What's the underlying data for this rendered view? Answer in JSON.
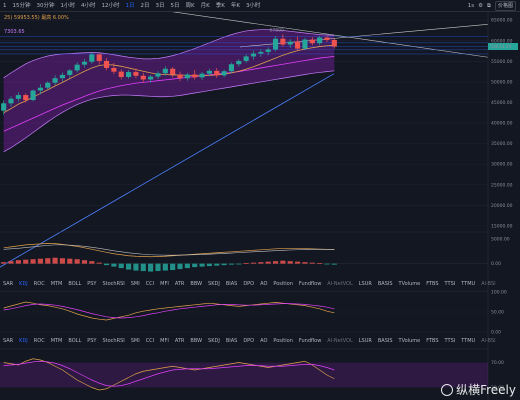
{
  "toolbar": {
    "timeframes": [
      "1",
      "15分钟",
      "30分钟",
      "1小时",
      "4小时",
      "12小时",
      "1日",
      "2日",
      "3日",
      "5日",
      "周K",
      "月K",
      "季K",
      "年K",
      "3小时"
    ],
    "active_timeframe": "1日",
    "interval_label": "1s",
    "mode_button": "价格图"
  },
  "legend": {
    "ma_line": "25) 59953.55) 最高 6.00%",
    "bb_line": "7303.65"
  },
  "price_axis": {
    "ticks": [
      "65000.00",
      "60000.00",
      "55000.00",
      "50000.00",
      "45000.00",
      "40000.00",
      "35000.00",
      "30000.00",
      "25000.00",
      "20000.00",
      "15000.00"
    ],
    "last_price": "58614.49",
    "last_price_color": "#26a69a",
    "high_label": "67800"
  },
  "macd_axis": {
    "ticks": [
      "5000.00",
      "0.00"
    ]
  },
  "indicators_row1": [
    "SAR",
    "KDJ",
    "ROC",
    "MTM",
    "BOLL",
    "PSY",
    "StochRSI",
    "SMI",
    "CCI",
    "MFI",
    "ATR",
    "BBW",
    "SKDJ",
    "BIAS",
    "DPO",
    "AO",
    "Position",
    "Fundflow",
    "Al-NetVOL",
    "LSUR",
    "BASIS",
    "TVolume",
    "FTBS",
    "TTSI",
    "TTMU",
    "Al-BSI"
  ],
  "indicators_row1_active": "KDJ",
  "indicators_row2": [
    "SAR",
    "KDJ",
    "ROC",
    "MTM",
    "BOLL",
    "PSY",
    "StochRSI",
    "SMI",
    "CCI",
    "MFI",
    "ATR",
    "BBW",
    "SKDJ",
    "BIAS",
    "DPO",
    "AO",
    "Position",
    "Fundflow",
    "Al-NetVOL",
    "LSUR",
    "BASIS",
    "TVolume",
    "FTBS",
    "TTSI",
    "TTMU",
    "Al-BSI"
  ],
  "indicators_row2_active": "KDJ",
  "osc1_axis": {
    "ticks": [
      "100.00",
      "50.00",
      "0.00"
    ]
  },
  "osc2_axis": {
    "ticks": [
      "70.00",
      "30.00"
    ]
  },
  "watermark": "纵横Freely",
  "colors": {
    "up": "#26a69a",
    "down": "#ef5350",
    "accent": "#2962ff",
    "band": "#7b1fa2"
  },
  "chart_data": {
    "type": "candlestick",
    "ohlc": [
      [
        43000,
        45500,
        42000,
        44800
      ],
      [
        44800,
        46500,
        44000,
        45900
      ],
      [
        45900,
        47500,
        45200,
        46800
      ],
      [
        46800,
        47200,
        45000,
        45600
      ],
      [
        45600,
        48200,
        45300,
        47900
      ],
      [
        47900,
        49500,
        47000,
        48600
      ],
      [
        48600,
        50200,
        48100,
        49800
      ],
      [
        49800,
        51600,
        49200,
        50900
      ],
      [
        50900,
        52300,
        50100,
        51700
      ],
      [
        51700,
        53100,
        51000,
        52800
      ],
      [
        52800,
        54800,
        52300,
        54200
      ],
      [
        54200,
        55600,
        53500,
        54900
      ],
      [
        54900,
        57200,
        54400,
        56700
      ],
      [
        56700,
        57000,
        54200,
        55100
      ],
      [
        55100,
        55800,
        52800,
        53400
      ],
      [
        53400,
        54600,
        51900,
        52500
      ],
      [
        52500,
        53100,
        50600,
        51200
      ],
      [
        51200,
        52900,
        50800,
        52400
      ],
      [
        52400,
        53300,
        50900,
        51500
      ],
      [
        51500,
        52200,
        49900,
        50600
      ],
      [
        50600,
        51700,
        49800,
        51300
      ],
      [
        51300,
        52600,
        50700,
        52100
      ],
      [
        52100,
        53800,
        51500,
        53200
      ],
      [
        53200,
        53600,
        51100,
        51800
      ],
      [
        51800,
        52500,
        50200,
        50900
      ],
      [
        50900,
        52200,
        50300,
        51800
      ],
      [
        51800,
        52900,
        50600,
        51100
      ],
      [
        51100,
        52400,
        50500,
        52000
      ],
      [
        52000,
        53200,
        51400,
        52700
      ],
      [
        52700,
        53400,
        51000,
        51600
      ],
      [
        51600,
        53000,
        51100,
        52600
      ],
      [
        52600,
        54700,
        52100,
        54300
      ],
      [
        54300,
        55500,
        53700,
        55100
      ],
      [
        55100,
        56700,
        54600,
        56200
      ],
      [
        56200,
        57600,
        55400,
        56900
      ],
      [
        56900,
        57900,
        56100,
        57300
      ],
      [
        57300,
        58400,
        56500,
        57900
      ],
      [
        57900,
        61200,
        57400,
        60500
      ],
      [
        60500,
        61600,
        58600,
        59100
      ],
      [
        59100,
        60400,
        58300,
        59800
      ],
      [
        59800,
        61000,
        57600,
        58100
      ],
      [
        58100,
        60700,
        57800,
        60300
      ],
      [
        60300,
        60900,
        58900,
        59400
      ],
      [
        59400,
        61200,
        58900,
        60800
      ],
      [
        60800,
        61100,
        59700,
        60200
      ],
      [
        60200,
        60600,
        58100,
        58600
      ]
    ],
    "price_range": [
      14000,
      67000
    ],
    "upper_band": [
      51000,
      52200,
      53300,
      54400,
      55200,
      55800,
      56300,
      56600,
      56800,
      56900,
      57000,
      57100,
      57150,
      57100,
      56900,
      56600,
      56300,
      56000,
      55800,
      55600,
      55600,
      55700,
      56000,
      56400,
      56900,
      57500,
      58100,
      58800,
      59500,
      60200,
      60900,
      61500,
      62000,
      62400,
      62600,
      62700,
      62700,
      62600,
      62500,
      62300,
      62100,
      61900,
      61700,
      61500,
      61400,
      61300
    ],
    "lower_band": [
      33000,
      34000,
      35200,
      36400,
      37700,
      39000,
      40300,
      41500,
      42600,
      43600,
      44500,
      45200,
      45800,
      46200,
      46500,
      46700,
      46800,
      46800,
      46700,
      46600,
      46500,
      46400,
      46400,
      46500,
      46700,
      47000,
      47300,
      47600,
      47900,
      48200,
      48500,
      48800,
      49100,
      49400,
      49700,
      50000,
      50300,
      50600,
      50900,
      51200,
      51500,
      51800,
      52100,
      52300,
      52500,
      52700
    ],
    "ma_fast": [
      42500,
      43500,
      44600,
      45400,
      46300,
      47200,
      48100,
      49000,
      49900,
      50800,
      51700,
      52600,
      53400,
      54000,
      54200,
      54100,
      53800,
      53400,
      53000,
      52600,
      52200,
      51900,
      51800,
      51700,
      51700,
      51600,
      51500,
      51500,
      51600,
      51700,
      51900,
      52200,
      52600,
      53100,
      53700,
      54400,
      55100,
      55800,
      56500,
      57100,
      57600,
      58000,
      58300,
      58600,
      58800,
      58900
    ],
    "ma_slow": [
      38000,
      38800,
      39600,
      40400,
      41200,
      42000,
      42800,
      43600,
      44400,
      45100,
      45800,
      46500,
      47200,
      47800,
      48300,
      48700,
      49100,
      49400,
      49700,
      49900,
      50100,
      50300,
      50500,
      50700,
      50900,
      51100,
      51300,
      51500,
      51700,
      51900,
      52100,
      52300,
      52500,
      52800,
      53100,
      53400,
      53700,
      54000,
      54300,
      54600,
      54900,
      55200,
      55500,
      55800,
      56000,
      56200
    ],
    "long_trend": [
      22000,
      30000
    ],
    "macd_hist": [
      300,
      500,
      700,
      800,
      900,
      1000,
      1100,
      1200,
      1100,
      1000,
      900,
      700,
      500,
      200,
      -300,
      -600,
      -900,
      -1200,
      -1400,
      -1500,
      -1600,
      -1500,
      -1400,
      -1300,
      -1100,
      -900,
      -700,
      -600,
      -500,
      -400,
      -300,
      -200,
      -100,
      100,
      200,
      300,
      400,
      500,
      600,
      500,
      400,
      300,
      200,
      100,
      -100,
      -200
    ],
    "macd_line": [
      3200,
      3400,
      3600,
      3800,
      3900,
      4000,
      4100,
      4050,
      3900,
      3700,
      3500,
      3200,
      2900,
      2600,
      2300,
      2000,
      1800,
      1600,
      1500,
      1450,
      1400,
      1450,
      1500,
      1600,
      1700,
      1800,
      1900,
      2000,
      2100,
      2200,
      2300,
      2400,
      2500,
      2600,
      2700,
      2800,
      2900,
      3000,
      3050,
      3100,
      3100,
      3050,
      3000,
      2950,
      2900,
      2850
    ],
    "signal_line": [
      2900,
      3000,
      3100,
      3250,
      3400,
      3550,
      3700,
      3800,
      3800,
      3750,
      3650,
      3500,
      3300,
      3100,
      2850,
      2600,
      2400,
      2200,
      2050,
      1900,
      1800,
      1750,
      1720,
      1720,
      1740,
      1770,
      1810,
      1860,
      1920,
      1990,
      2070,
      2150,
      2230,
      2310,
      2390,
      2470,
      2550,
      2630,
      2700,
      2760,
      2810,
      2850,
      2870,
      2880,
      2880,
      2870
    ],
    "osc1_k": [
      60,
      65,
      70,
      75,
      72,
      68,
      66,
      62,
      58,
      52,
      45,
      40,
      35,
      32,
      30,
      34,
      38,
      42,
      48,
      52,
      55,
      58,
      60,
      62,
      64,
      66,
      68,
      70,
      72,
      70,
      68,
      66,
      64,
      66,
      68,
      70,
      72,
      74,
      72,
      70,
      68,
      66,
      62,
      58,
      52,
      48
    ],
    "osc1_d": [
      55,
      58,
      62,
      66,
      69,
      70,
      69,
      67,
      64,
      60,
      56,
      51,
      46,
      42,
      38,
      36,
      35,
      36,
      38,
      41,
      45,
      48,
      52,
      55,
      58,
      60,
      62,
      64,
      66,
      68,
      69,
      69,
      68,
      67,
      67,
      68,
      69,
      70,
      71,
      71,
      70,
      69,
      67,
      65,
      62,
      58
    ],
    "osc2_k": [
      70,
      68,
      66,
      72,
      76,
      74,
      70,
      64,
      58,
      50,
      42,
      36,
      30,
      26,
      28,
      34,
      40,
      46,
      52,
      56,
      58,
      60,
      62,
      64,
      62,
      60,
      58,
      60,
      62,
      64,
      66,
      68,
      70,
      68,
      66,
      64,
      62,
      64,
      66,
      68,
      70,
      72,
      66,
      58,
      50,
      44
    ],
    "osc2_d": [
      65,
      66,
      67,
      69,
      71,
      72,
      71,
      69,
      65,
      60,
      54,
      48,
      42,
      37,
      33,
      32,
      33,
      36,
      40,
      44,
      48,
      52,
      55,
      58,
      59,
      60,
      60,
      60,
      60,
      61,
      62,
      63,
      64,
      65,
      65,
      65,
      64,
      64,
      64,
      65,
      66,
      67,
      67,
      65,
      62,
      58
    ]
  }
}
